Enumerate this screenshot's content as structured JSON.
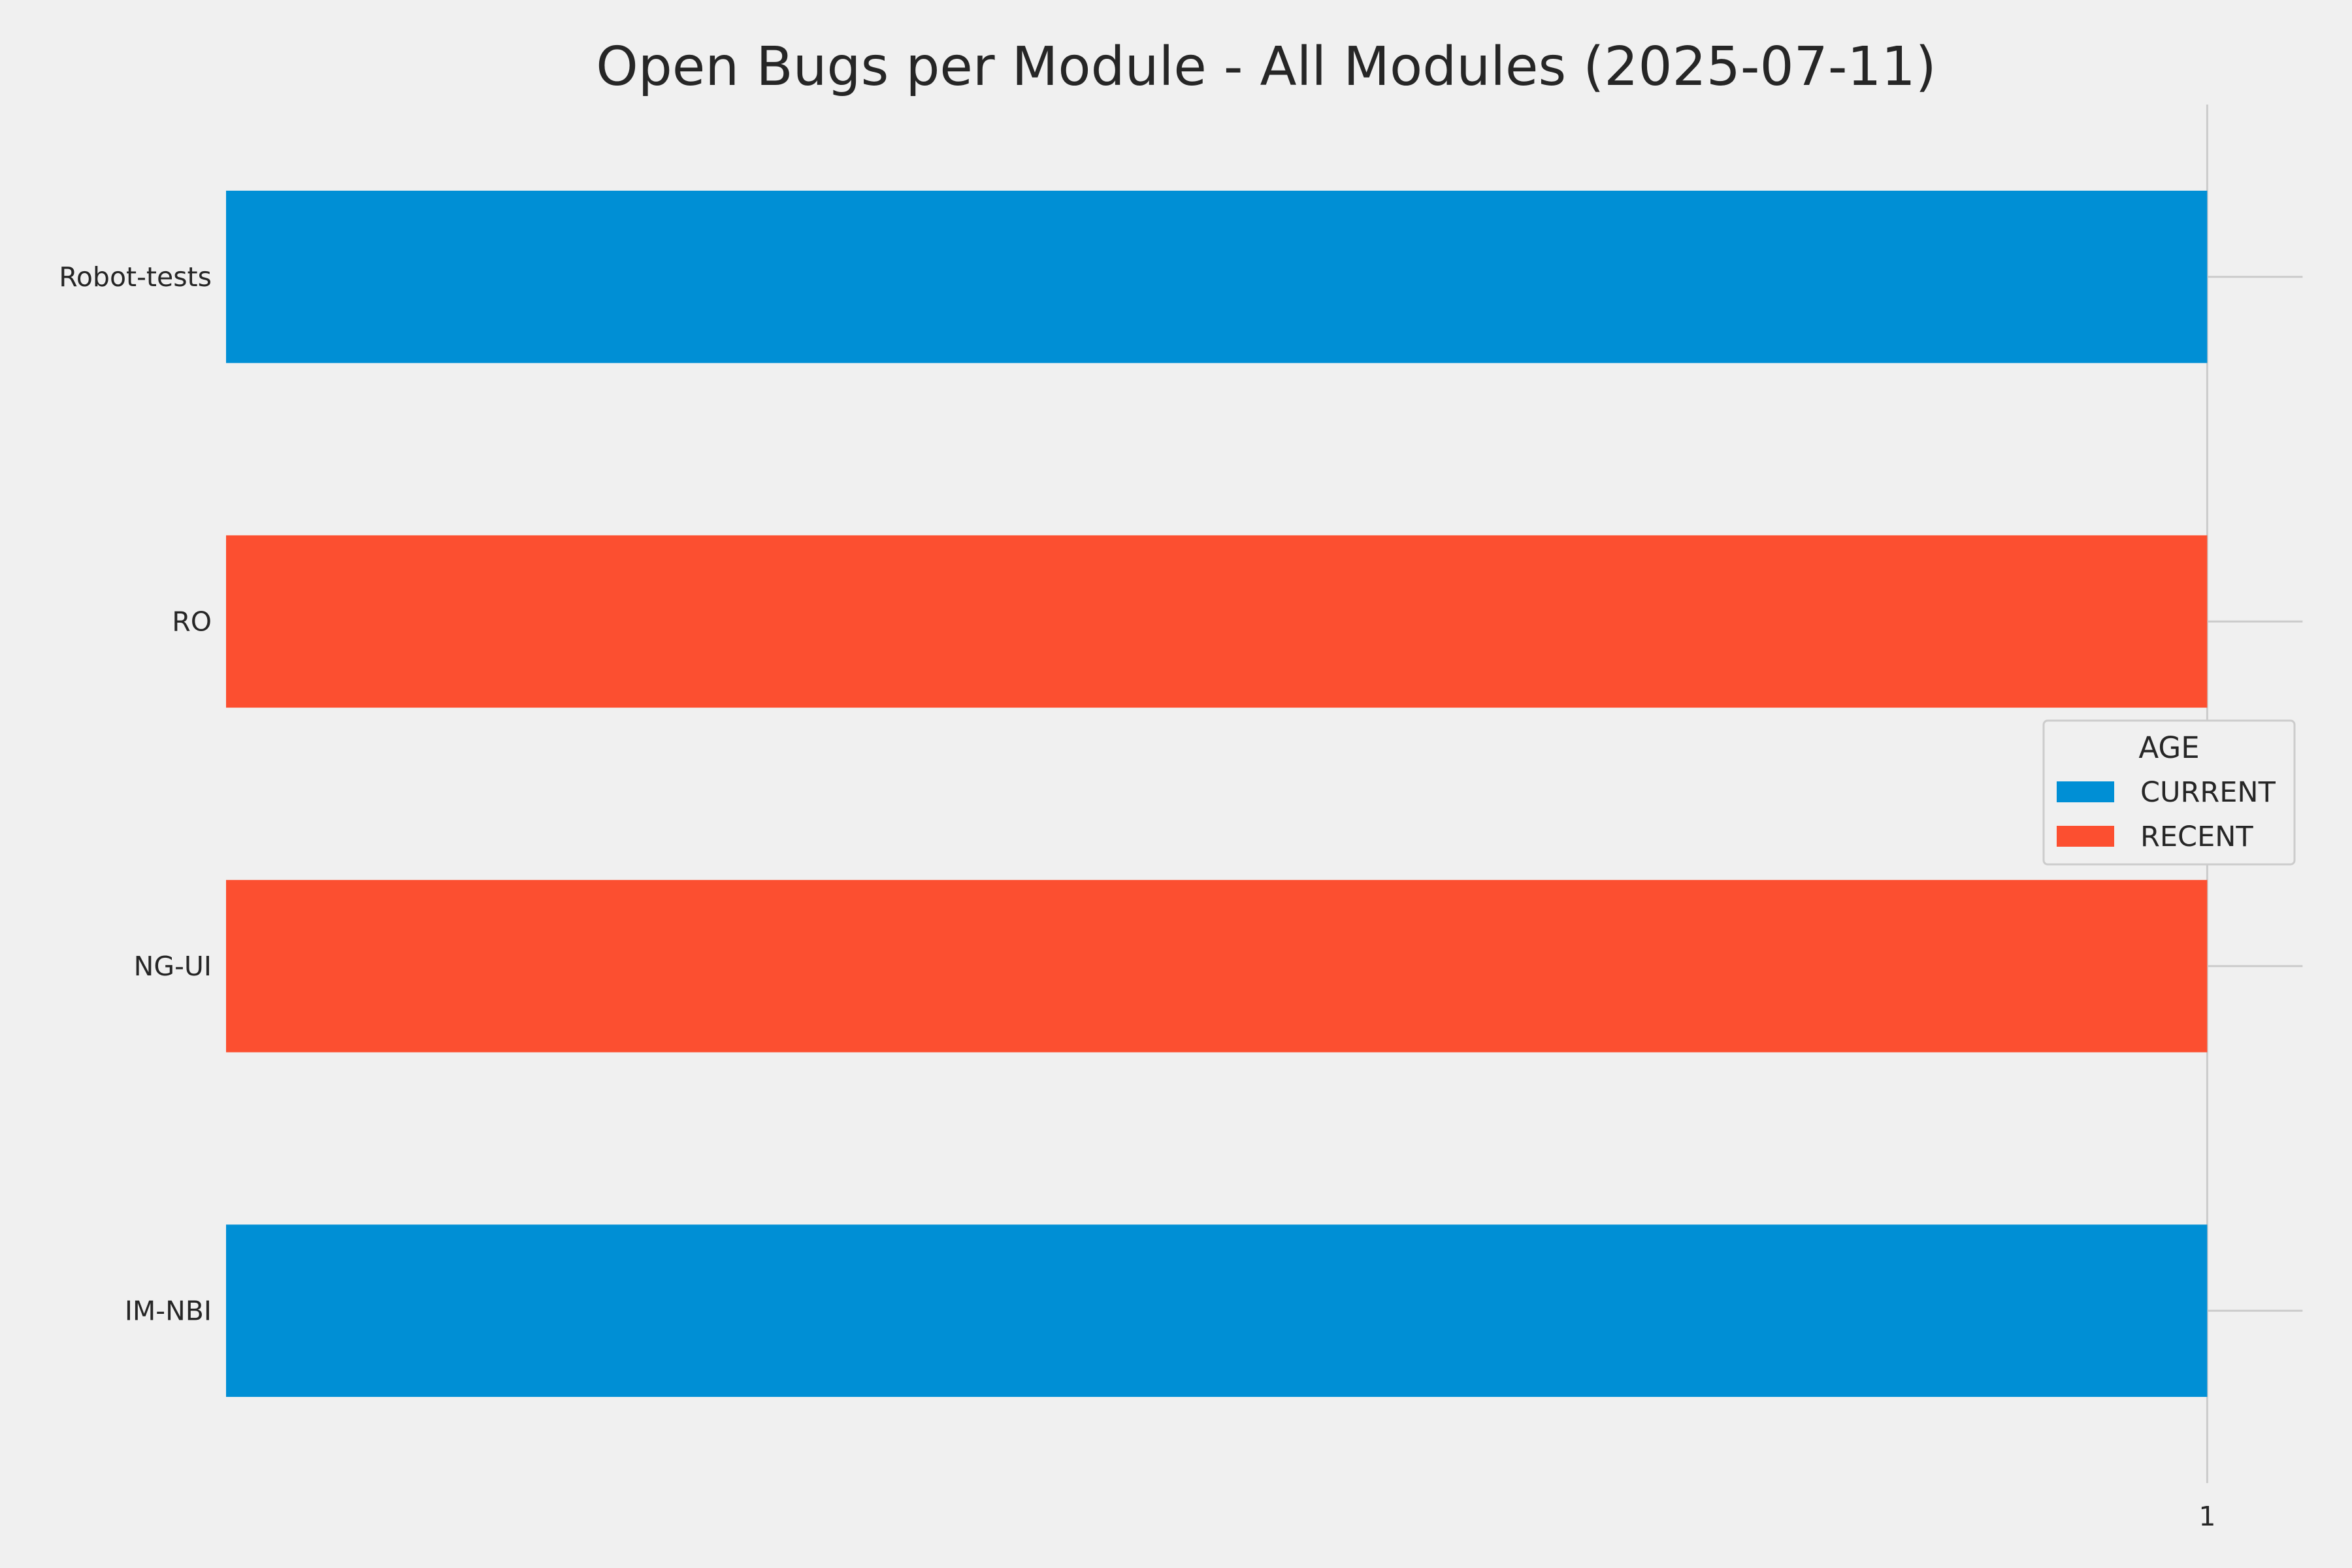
{
  "chart_data": {
    "type": "bar",
    "orientation": "horizontal",
    "title": "Open Bugs per Module - All Modules (2025-07-11)",
    "xlabel": "",
    "ylabel": "",
    "categories": [
      "Robot-tests",
      "RO",
      "NG-UI",
      "IM-NBI"
    ],
    "series": [
      {
        "name": "CURRENT",
        "color": "#008fd5",
        "values": [
          1,
          null,
          null,
          1
        ]
      },
      {
        "name": "RECENT",
        "color": "#fc4f30",
        "values": [
          null,
          1,
          1,
          null
        ]
      }
    ],
    "stacked": true,
    "xlim": [
      0,
      1.05
    ],
    "xticks": [
      1
    ],
    "xtick_labels": [
      "1"
    ],
    "grid": true,
    "legend": {
      "title": "AGE",
      "placement": "center-right",
      "entries": [
        "CURRENT",
        "RECENT"
      ]
    },
    "background": "#f0f0f0",
    "grid_color": "#cbcbcb"
  }
}
